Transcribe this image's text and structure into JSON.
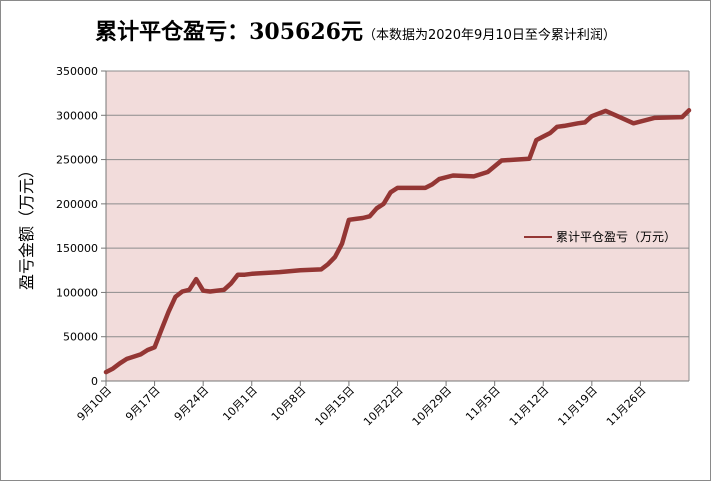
{
  "chart_data": {
    "type": "line",
    "title": "累计平仓盈亏：305626元",
    "subtitle": "（本数据为2020年9月10日至今累计利润）",
    "ylabel": "盈亏金额（万元）",
    "xlabel": "",
    "ylim": [
      0,
      350000
    ],
    "yticks": [
      0,
      50000,
      100000,
      150000,
      200000,
      250000,
      300000,
      350000
    ],
    "ytick_labels": [
      "0",
      "50000",
      "100000",
      "150000",
      "200000",
      "250000",
      "300000",
      "350000"
    ],
    "xrange": [
      "2020-09-10",
      "2020-12-03"
    ],
    "xtick_labels": [
      "9月10日",
      "9月17日",
      "9月24日",
      "10月1日",
      "10月8日",
      "10月15日",
      "10月22日",
      "10月29日",
      "11月5日",
      "11月12日",
      "11月19日",
      "11月26日"
    ],
    "xtick_dates": [
      "2020-09-10",
      "2020-09-17",
      "2020-09-24",
      "2020-10-01",
      "2020-10-08",
      "2020-10-15",
      "2020-10-22",
      "2020-10-29",
      "2020-11-05",
      "2020-11-12",
      "2020-11-19",
      "2020-11-26"
    ],
    "grid": true,
    "legend": "right",
    "series": [
      {
        "name": "累计平仓盈亏（万元）",
        "color": "#943634",
        "points": [
          [
            "2020-09-10",
            10000
          ],
          [
            "2020-09-11",
            14000
          ],
          [
            "2020-09-12",
            20000
          ],
          [
            "2020-09-13",
            25000
          ],
          [
            "2020-09-15",
            30000
          ],
          [
            "2020-09-16",
            35000
          ],
          [
            "2020-09-17",
            38000
          ],
          [
            "2020-09-18",
            58000
          ],
          [
            "2020-09-19",
            78000
          ],
          [
            "2020-09-20",
            95000
          ],
          [
            "2020-09-21",
            101000
          ],
          [
            "2020-09-22",
            103000
          ],
          [
            "2020-09-23",
            115000
          ],
          [
            "2020-09-24",
            102000
          ],
          [
            "2020-09-25",
            101000
          ],
          [
            "2020-09-27",
            103000
          ],
          [
            "2020-09-28",
            110000
          ],
          [
            "2020-09-29",
            120000
          ],
          [
            "2020-09-30",
            120000
          ],
          [
            "2020-10-01",
            121000
          ],
          [
            "2020-10-05",
            123000
          ],
          [
            "2020-10-08",
            125000
          ],
          [
            "2020-10-11",
            126000
          ],
          [
            "2020-10-12",
            132000
          ],
          [
            "2020-10-13",
            140000
          ],
          [
            "2020-10-14",
            155000
          ],
          [
            "2020-10-15",
            182000
          ],
          [
            "2020-10-16",
            183000
          ],
          [
            "2020-10-17",
            184000
          ],
          [
            "2020-10-18",
            186000
          ],
          [
            "2020-10-19",
            195000
          ],
          [
            "2020-10-20",
            200000
          ],
          [
            "2020-10-21",
            213000
          ],
          [
            "2020-10-22",
            218000
          ],
          [
            "2020-10-24",
            218000
          ],
          [
            "2020-10-26",
            218000
          ],
          [
            "2020-10-27",
            222000
          ],
          [
            "2020-10-28",
            228000
          ],
          [
            "2020-10-30",
            232000
          ],
          [
            "2020-11-02",
            231000
          ],
          [
            "2020-11-04",
            236000
          ],
          [
            "2020-11-06",
            249000
          ],
          [
            "2020-11-08",
            250000
          ],
          [
            "2020-11-10",
            251000
          ],
          [
            "2020-11-11",
            272000
          ],
          [
            "2020-11-12",
            276000
          ],
          [
            "2020-11-13",
            280000
          ],
          [
            "2020-11-14",
            287000
          ],
          [
            "2020-11-15",
            288000
          ],
          [
            "2020-11-17",
            291000
          ],
          [
            "2020-11-18",
            292000
          ],
          [
            "2020-11-19",
            299000
          ],
          [
            "2020-11-21",
            305000
          ],
          [
            "2020-11-23",
            298000
          ],
          [
            "2020-11-25",
            291000
          ],
          [
            "2020-11-28",
            297000
          ],
          [
            "2020-12-02",
            298000
          ],
          [
            "2020-12-03",
            305626
          ]
        ]
      }
    ]
  }
}
